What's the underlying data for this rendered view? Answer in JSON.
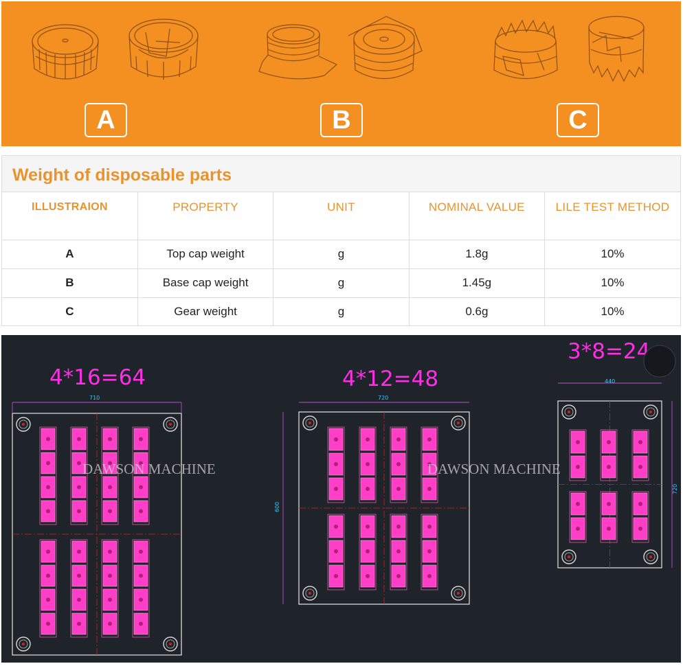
{
  "banner": {
    "labels": [
      "A",
      "B",
      "C"
    ],
    "background": "#f39021"
  },
  "weights": {
    "title": "Weight of disposable parts",
    "headers": [
      "ILLUSTRAION",
      "PROPERTY",
      "UNIT",
      "NOMINAL VALUE",
      "LILE TEST METHOD"
    ],
    "rows": [
      {
        "illustration": "A",
        "property": "Top cap weight",
        "unit": "g",
        "nominal": "1.8g",
        "test": "10%"
      },
      {
        "illustration": "B",
        "property": "Base cap weight",
        "unit": "g",
        "nominal": "1.45g",
        "test": "10%"
      },
      {
        "illustration": "C",
        "property": "Gear weight",
        "unit": "g",
        "nominal": "0.6g",
        "test": "10%"
      }
    ],
    "accent": "#e8932e"
  },
  "molds": [
    {
      "formula": "4*16=64",
      "width_dim": "710",
      "watermark": "DAWSON MACHINE"
    },
    {
      "formula": "4*12=48",
      "width_dim": "720",
      "height_dim": "600",
      "watermark": "DAWSON MACHINE"
    },
    {
      "formula": "3*8=24",
      "width_dim": "440",
      "height_dim": "720"
    }
  ],
  "colors": {
    "cavity": "#ff3ec8",
    "formula": "#ff2ee6",
    "dimension": "#39c8ff",
    "centerline": "#d42020",
    "drawing_bg": "#1f232a"
  }
}
